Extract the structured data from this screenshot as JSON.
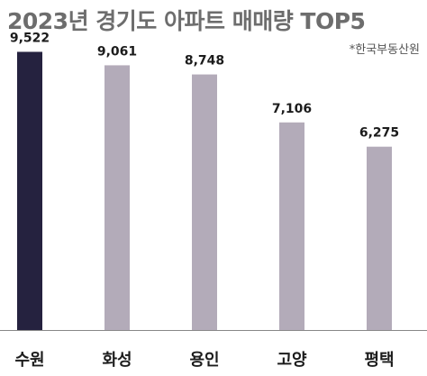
{
  "chart_data": {
    "type": "bar",
    "title": "2023년 경기도 아파트 매매량 TOP5",
    "source": "*한국부동산원",
    "categories": [
      "수원",
      "화성",
      "용인",
      "고양",
      "평택"
    ],
    "values": [
      9522,
      9061,
      8748,
      7106,
      6275
    ],
    "value_labels": [
      "9,522",
      "9,061",
      "8,748",
      "7,106",
      "6,275"
    ],
    "ylim": [
      0,
      10000
    ],
    "grid": false,
    "legend": "none",
    "colors": {
      "highlight": "#25223f",
      "default": "#b3abb9",
      "axis": "#888888"
    }
  }
}
